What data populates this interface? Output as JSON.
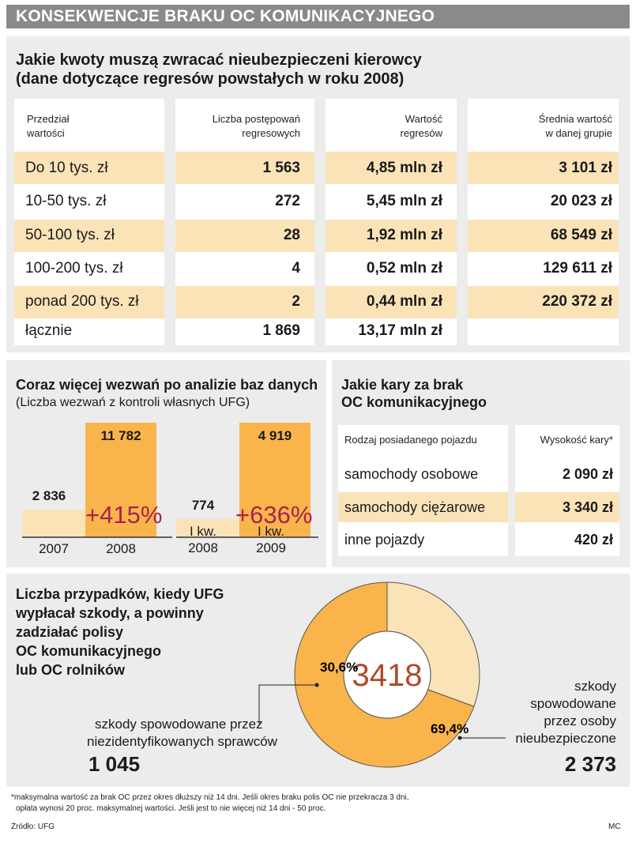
{
  "title": "KONSEKWENCJE BRAKU OC KOMUNIKACYJNEGO",
  "regress": {
    "heading_line1": "Jakie kwoty muszą zwracać nieubezpieczeni kierowcy",
    "heading_line2": "(dane dotyczące regresów powstałych w roku 2008)",
    "headers": {
      "c1_l1": "Przedział",
      "c1_l2": "wartości",
      "c2_l1": "Liczba postępowań",
      "c2_l2": "regresowych",
      "c3_l1": "Wartość",
      "c3_l2": "regresów",
      "c4_l1": "Średnia wartość",
      "c4_l2": "w danej grupie"
    },
    "rows": [
      {
        "range": "Do 10 tys. zł",
        "count": "1 563",
        "value": "4,85 mln zł",
        "avg": "3 101 zł"
      },
      {
        "range": "10-50 tys. zł",
        "count": "272",
        "value": "5,45 mln zł",
        "avg": "20 023 zł"
      },
      {
        "range": "50-100 tys. zł",
        "count": "28",
        "value": "1,92 mln zł",
        "avg": "68 549 zł"
      },
      {
        "range": "100-200 tys. zł",
        "count": "4",
        "value": "0,52 mln zł",
        "avg": "129 611 zł"
      },
      {
        "range": "ponad 200 tys. zł",
        "count": "2",
        "value": "0,44 mln zł",
        "avg": "220 372 zł"
      },
      {
        "range": "łącznie",
        "count": "1 869",
        "value": "13,17 mln zł",
        "avg": ""
      }
    ]
  },
  "penalties": {
    "title_l1": "Jakie kary za brak",
    "title_l2": "OC komunikacyjnego",
    "col1": "Rodzaj posiadanego pojazdu",
    "col2": "Wysokość kary*",
    "rows": [
      {
        "type": "samochody osobowe",
        "amount": "2 090 zł"
      },
      {
        "type": "samochody ciężarowe",
        "amount": "3 340 zł"
      },
      {
        "type": "inne pojazdy",
        "amount": "420 zł"
      }
    ]
  },
  "donut": {
    "title_l1": "Liczba przypadków, kiedy UFG",
    "title_l2": "wypłacał szkody, a powinny",
    "title_l3": "zadziałać polisy",
    "title_l4": "OC komunikacyjnego",
    "title_l5": "lub OC rolników",
    "left_l1": "szkody spowodowane przez",
    "left_l2": "niezidentyfikowanych sprawców",
    "left_value": "1 045",
    "right_l1": "szkody",
    "right_l2": "spowodowane",
    "right_l3": "przez osoby",
    "right_l4": "nieubezpieczone",
    "right_value": "2 373"
  },
  "footnote_l1": "*maksymalna wartość za brak OC przez okres dłuższy niż 14 dni. Jeśli okres braku polis OC nie przekracza 3 dni,",
  "footnote_l2": "opłata wynosi 20 proc. maksymalnej wartości. Jeśli jest to nie więcej niż 14 dni - 50 proc.",
  "source": "Źródło: UFG",
  "author": "MC",
  "colors": {
    "light": "#fbe3b8",
    "orange": "#f9b44c",
    "accent": "#a8234b",
    "gray": "#8a8a8a",
    "panel": "#ececec"
  },
  "chart_data": [
    {
      "type": "bar",
      "title": "Coraz więcej wezwań po analizie baz danych",
      "subtitle": "(Liczba wezwań z kontroli własnych UFG)",
      "groups": [
        {
          "categories": [
            "2007",
            "2008"
          ],
          "values": [
            2836,
            11782
          ],
          "labels": [
            "2 836",
            "11 782"
          ],
          "change": "+415%"
        },
        {
          "categories": [
            "I kw. 2008",
            "I kw. 2009"
          ],
          "values": [
            774,
            4919
          ],
          "labels": [
            "774",
            "4 919"
          ],
          "change": "+636%"
        }
      ]
    },
    {
      "type": "pie",
      "title": "Liczba przypadków, kiedy UFG wypłacał szkody",
      "total": "3418",
      "slices": [
        {
          "name": "szkody spowodowane przez niezidentyfikowanych sprawców",
          "value": 1045,
          "percent": 30.6,
          "label": "30,6%"
        },
        {
          "name": "szkody spowodowane przez osoby nieubezpieczone",
          "value": 2373,
          "percent": 69.4,
          "label": "69,4%"
        }
      ]
    }
  ]
}
